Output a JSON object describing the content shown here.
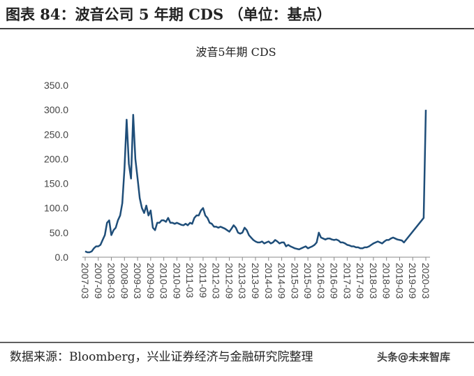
{
  "header": {
    "title": "图表 84：波音公司 5 年期 CDS （单位：基点）"
  },
  "chart_data": {
    "type": "line",
    "title": "波音5年期 CDS",
    "x": [
      "2007-03",
      "2007-04",
      "2007-05",
      "2007-06",
      "2007-07",
      "2007-08",
      "2007-09",
      "2007-10",
      "2007-11",
      "2007-12",
      "2008-01",
      "2008-02",
      "2008-03",
      "2008-04",
      "2008-05",
      "2008-06",
      "2008-07",
      "2008-08",
      "2008-09",
      "2008-10",
      "2008-11",
      "2008-12",
      "2009-01",
      "2009-02",
      "2009-03",
      "2009-04",
      "2009-05",
      "2009-06",
      "2009-07",
      "2009-08",
      "2009-09",
      "2009-10",
      "2009-11",
      "2009-12",
      "2010-01",
      "2010-02",
      "2010-03",
      "2010-04",
      "2010-05",
      "2010-06",
      "2010-07",
      "2010-08",
      "2010-09",
      "2010-10",
      "2010-11",
      "2010-12",
      "2011-01",
      "2011-02",
      "2011-03",
      "2011-04",
      "2011-05",
      "2011-06",
      "2011-07",
      "2011-08",
      "2011-09",
      "2011-10",
      "2011-11",
      "2011-12",
      "2012-01",
      "2012-02",
      "2012-03",
      "2012-04",
      "2012-05",
      "2012-06",
      "2012-07",
      "2012-08",
      "2012-09",
      "2012-10",
      "2012-11",
      "2012-12",
      "2013-01",
      "2013-02",
      "2013-03",
      "2013-04",
      "2013-05",
      "2013-06",
      "2013-07",
      "2013-08",
      "2013-09",
      "2013-10",
      "2013-11",
      "2013-12",
      "2014-01",
      "2014-02",
      "2014-03",
      "2014-04",
      "2014-05",
      "2014-06",
      "2014-07",
      "2014-08",
      "2014-09",
      "2014-10",
      "2014-11",
      "2014-12",
      "2015-01",
      "2015-02",
      "2015-03",
      "2015-04",
      "2015-05",
      "2015-06",
      "2015-07",
      "2015-08",
      "2015-09",
      "2015-10",
      "2015-11",
      "2015-12",
      "2016-01",
      "2016-02",
      "2016-03",
      "2016-04",
      "2016-05",
      "2016-06",
      "2016-07",
      "2016-08",
      "2016-09",
      "2016-10",
      "2016-11",
      "2016-12",
      "2017-01",
      "2017-02",
      "2017-03",
      "2017-04",
      "2017-05",
      "2017-06",
      "2017-07",
      "2017-08",
      "2017-09",
      "2017-10",
      "2017-11",
      "2017-12",
      "2018-01",
      "2018-02",
      "2018-03",
      "2018-04",
      "2018-05",
      "2018-06",
      "2018-07",
      "2018-08",
      "2018-09",
      "2018-10",
      "2018-11",
      "2018-12",
      "2019-01",
      "2019-02",
      "2019-03",
      "2019-04",
      "2019-05",
      "2020-02",
      "2020-03"
    ],
    "values": [
      12,
      10,
      10,
      12,
      18,
      22,
      22,
      25,
      35,
      45,
      70,
      75,
      45,
      55,
      60,
      75,
      85,
      110,
      180,
      280,
      190,
      160,
      290,
      200,
      160,
      120,
      100,
      90,
      105,
      85,
      95,
      60,
      55,
      70,
      70,
      75,
      75,
      72,
      80,
      70,
      70,
      68,
      70,
      68,
      66,
      65,
      68,
      65,
      70,
      68,
      80,
      85,
      85,
      95,
      100,
      85,
      80,
      70,
      68,
      62,
      62,
      60,
      62,
      60,
      58,
      55,
      52,
      58,
      65,
      60,
      50,
      48,
      50,
      60,
      55,
      45,
      40,
      35,
      32,
      30,
      30,
      32,
      28,
      30,
      32,
      28,
      30,
      35,
      32,
      28,
      30,
      30,
      22,
      25,
      22,
      20,
      18,
      17,
      16,
      18,
      20,
      22,
      18,
      20,
      22,
      25,
      30,
      50,
      40,
      38,
      36,
      38,
      38,
      36,
      35,
      36,
      34,
      30,
      30,
      28,
      25,
      24,
      22,
      22,
      20,
      20,
      18,
      18,
      20,
      20,
      22,
      25,
      28,
      30,
      32,
      30,
      28,
      32,
      35,
      35,
      38,
      40,
      38,
      36,
      35,
      34,
      30,
      80,
      300
    ],
    "color": "#1f4e79",
    "xticks": [
      "2007-03",
      "2007-09",
      "2008-03",
      "2008-09",
      "2009-03",
      "2009-09",
      "2010-03",
      "2010-09",
      "2011-03",
      "2011-09",
      "2012-03",
      "2012-09",
      "2013-03",
      "2013-09",
      "2014-03",
      "2014-09",
      "2015-03",
      "2015-09",
      "2016-03",
      "2016-09",
      "2017-03",
      "2017-09",
      "2018-03",
      "2018-09",
      "2019-03",
      "2019-09",
      "2020-03"
    ],
    "ylim": [
      0,
      350
    ],
    "yticks": [
      {
        "value": 0,
        "label": "0.0"
      },
      {
        "value": 50,
        "label": "50.0"
      },
      {
        "value": 100,
        "label": "100.0"
      },
      {
        "value": 150,
        "label": "150.0"
      },
      {
        "value": 200,
        "label": "200.0"
      },
      {
        "value": 250,
        "label": "250.0"
      },
      {
        "value": 300,
        "label": "300.0"
      },
      {
        "value": 350,
        "label": "350.0"
      }
    ]
  },
  "footer": {
    "source": "数据来源：Bloomberg，兴业证券经济与金融研究院整理",
    "watermark": "头条@未来智库"
  }
}
